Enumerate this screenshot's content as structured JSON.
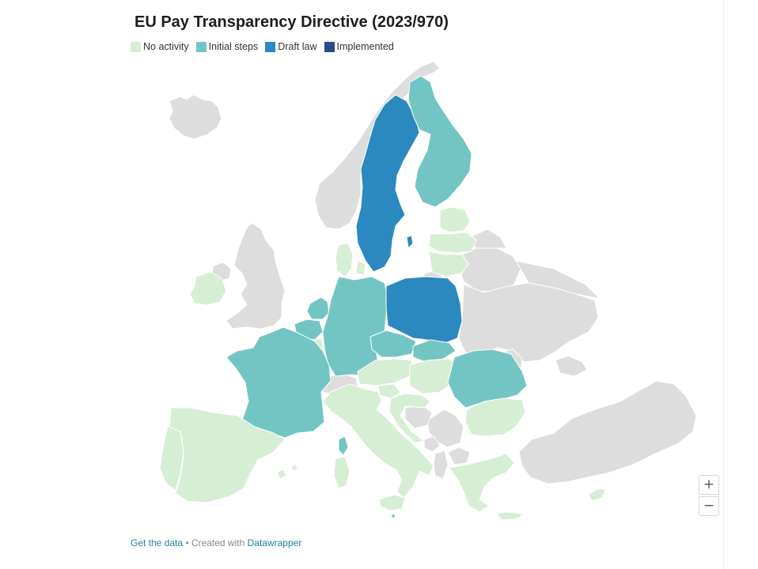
{
  "title": "EU Pay Transparency Directive (2023/970)",
  "legend": [
    {
      "label": "No activity",
      "color": "#d6eed3"
    },
    {
      "label": "Initial steps",
      "color": "#73c5c3"
    },
    {
      "label": "Draft law",
      "color": "#2b89bf"
    },
    {
      "label": "Implemented",
      "color": "#264a8a"
    }
  ],
  "colors": {
    "non_eu": "#dddddd",
    "border": "#ffffff"
  },
  "zoom": {
    "in_label": "+",
    "out_label": "−"
  },
  "footer": {
    "data_link": "Get the data",
    "separator": " • Created with ",
    "tool_link": "Datawrapper"
  },
  "countries": [
    {
      "name": "Sweden",
      "status": "Draft law"
    },
    {
      "name": "Poland",
      "status": "Draft law"
    },
    {
      "name": "Finland",
      "status": "Initial steps"
    },
    {
      "name": "Germany",
      "status": "Initial steps"
    },
    {
      "name": "France",
      "status": "Initial steps"
    },
    {
      "name": "Netherlands",
      "status": "Initial steps"
    },
    {
      "name": "Belgium",
      "status": "Initial steps"
    },
    {
      "name": "Czechia",
      "status": "Initial steps"
    },
    {
      "name": "Slovakia",
      "status": "Initial steps"
    },
    {
      "name": "Romania",
      "status": "Initial steps"
    },
    {
      "name": "Malta",
      "status": "Initial steps"
    },
    {
      "name": "Denmark",
      "status": "No activity"
    },
    {
      "name": "Estonia",
      "status": "No activity"
    },
    {
      "name": "Latvia",
      "status": "No activity"
    },
    {
      "name": "Lithuania",
      "status": "No activity"
    },
    {
      "name": "Ireland",
      "status": "No activity"
    },
    {
      "name": "Luxembourg",
      "status": "No activity"
    },
    {
      "name": "Austria",
      "status": "No activity"
    },
    {
      "name": "Hungary",
      "status": "No activity"
    },
    {
      "name": "Slovenia",
      "status": "No activity"
    },
    {
      "name": "Croatia",
      "status": "No activity"
    },
    {
      "name": "Italy",
      "status": "No activity"
    },
    {
      "name": "Spain",
      "status": "No activity"
    },
    {
      "name": "Portugal",
      "status": "No activity"
    },
    {
      "name": "Bulgaria",
      "status": "No activity"
    },
    {
      "name": "Greece",
      "status": "No activity"
    },
    {
      "name": "Cyprus",
      "status": "No activity"
    }
  ]
}
